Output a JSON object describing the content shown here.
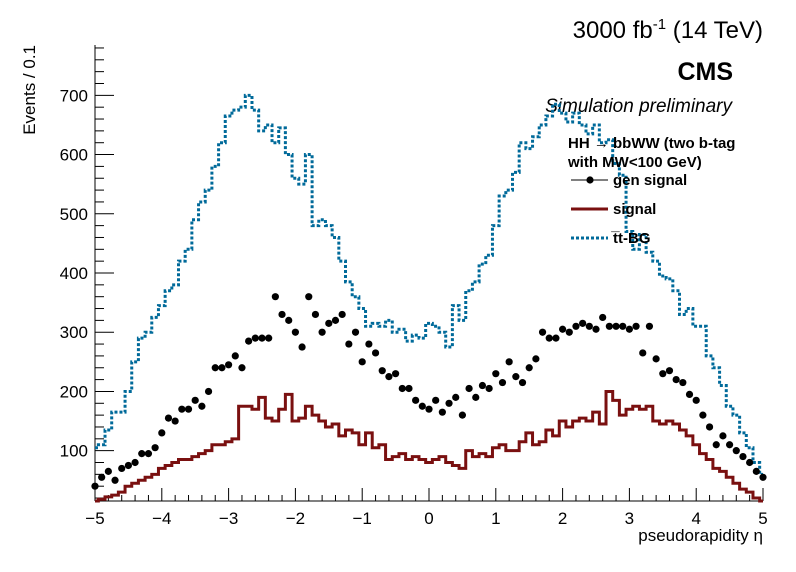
{
  "header": {
    "lumi_prefix": "3000 fb",
    "lumi_exp": "-1",
    "lumi_suffix": " (14 TeV)",
    "experiment": "CMS",
    "subtitle": "Simulation preliminary"
  },
  "legend": {
    "title_line1": "HH → bbWW (two b-tag",
    "title_line2": "with MW<100 GeV)"
  },
  "chart_data": {
    "type": "histogram",
    "xlabel": "pseudorapidity η",
    "ylabel": "Events / 0.1",
    "xlim": [
      -5,
      5
    ],
    "ylim": [
      15,
      785
    ],
    "bin_width": 0.1,
    "grid": false,
    "legend_position": "top-right",
    "x_ticks": [
      "−5",
      "−4",
      "−3",
      "−2",
      "−1",
      "0",
      "1",
      "2",
      "3",
      "4",
      "5"
    ],
    "x_tick_values": [
      -5,
      -4,
      -3,
      -2,
      -1,
      0,
      1,
      2,
      3,
      4,
      5
    ],
    "y_ticks": [
      "100",
      "200",
      "300",
      "400",
      "500",
      "600",
      "700"
    ],
    "y_tick_values": [
      100,
      200,
      300,
      400,
      500,
      600,
      700
    ],
    "series": [
      {
        "name": "gen signal",
        "style": "markers",
        "color": "#000000",
        "values": [
          40,
          55,
          65,
          50,
          70,
          75,
          80,
          95,
          95,
          105,
          130,
          155,
          150,
          170,
          170,
          185,
          175,
          200,
          240,
          240,
          245,
          260,
          240,
          285,
          290,
          290,
          290,
          360,
          330,
          320,
          300,
          275,
          360,
          330,
          300,
          315,
          320,
          330,
          280,
          300,
          250,
          280,
          265,
          235,
          225,
          230,
          205,
          205,
          185,
          175,
          170,
          185,
          165,
          180,
          190,
          160,
          205,
          190,
          210,
          205,
          230,
          215,
          250,
          225,
          215,
          240,
          255,
          300,
          290,
          290,
          305,
          300,
          310,
          315,
          310,
          305,
          325,
          310,
          310,
          310,
          305,
          310,
          265,
          310,
          255,
          230,
          235,
          220,
          215,
          195,
          185,
          160,
          140,
          110,
          125,
          110,
          100,
          90,
          80,
          65,
          55
        ]
      },
      {
        "name": "signal",
        "color": "#7a1010",
        "values": [
          15,
          18,
          22,
          25,
          30,
          40,
          45,
          50,
          55,
          60,
          70,
          75,
          80,
          85,
          85,
          90,
          95,
          100,
          110,
          110,
          115,
          120,
          175,
          175,
          170,
          190,
          155,
          150,
          170,
          195,
          150,
          155,
          175,
          160,
          150,
          140,
          145,
          125,
          135,
          130,
          110,
          130,
          105,
          110,
          85,
          90,
          95,
          85,
          90,
          85,
          80,
          85,
          90,
          80,
          75,
          70,
          100,
          90,
          95,
          90,
          105,
          110,
          100,
          100,
          115,
          130,
          110,
          115,
          135,
          125,
          150,
          140,
          150,
          155,
          150,
          165,
          145,
          200,
          185,
          160,
          170,
          175,
          170,
          175,
          150,
          145,
          150,
          145,
          135,
          125,
          110,
          95,
          85,
          70,
          65,
          55,
          45,
          35,
          30,
          20,
          15
        ]
      },
      {
        "name": "t̅t-BG",
        "style": "dotted",
        "color": "#006a9a",
        "values": [
          105,
          110,
          135,
          165,
          165,
          200,
          250,
          290,
          300,
          325,
          345,
          370,
          380,
          420,
          440,
          490,
          520,
          540,
          580,
          620,
          665,
          675,
          680,
          700,
          675,
          640,
          650,
          620,
          645,
          600,
          560,
          550,
          600,
          480,
          490,
          480,
          460,
          420,
          385,
          360,
          340,
          310,
          315,
          310,
          320,
          300,
          305,
          285,
          295,
          290,
          315,
          310,
          300,
          275,
          345,
          320,
          370,
          385,
          415,
          430,
          480,
          530,
          540,
          570,
          620,
          610,
          630,
          650,
          665,
          685,
          670,
          655,
          670,
          650,
          635,
          650,
          620,
          625,
          585,
          565,
          470,
          440,
          465,
          435,
          420,
          395,
          390,
          370,
          330,
          340,
          310,
          310,
          260,
          240,
          210,
          175,
          160,
          130,
          105,
          80,
          60
        ]
      }
    ]
  }
}
